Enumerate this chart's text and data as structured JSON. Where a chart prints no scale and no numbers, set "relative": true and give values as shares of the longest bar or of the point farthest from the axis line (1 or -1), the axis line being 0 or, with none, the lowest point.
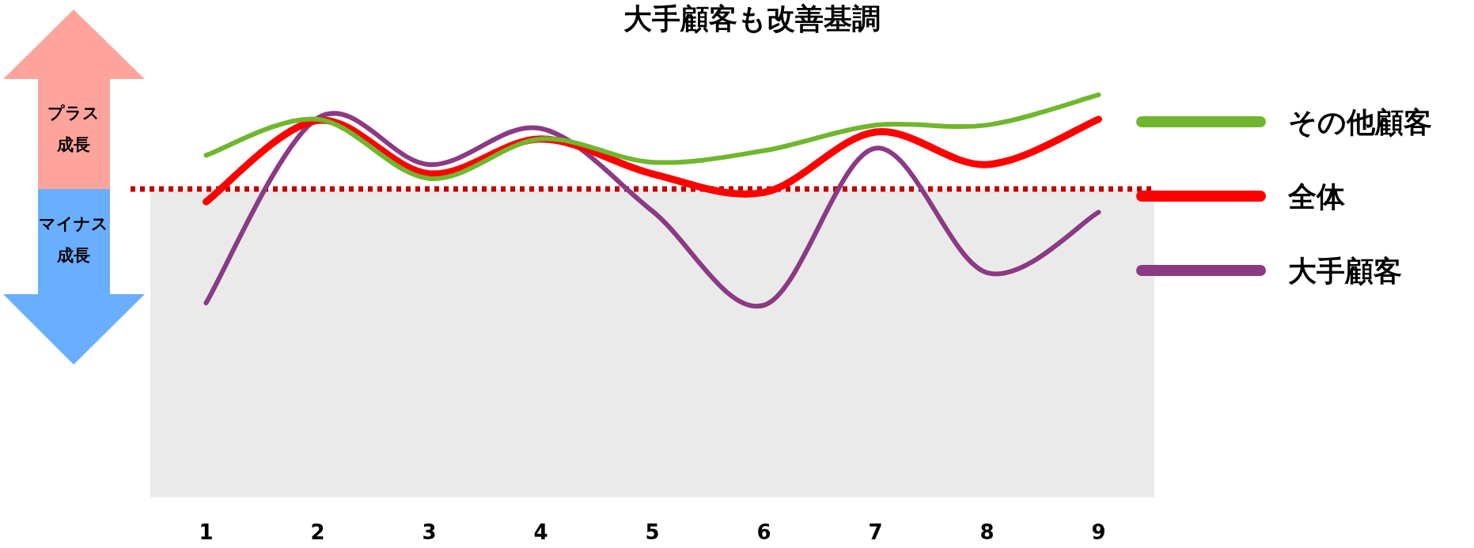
{
  "chart_data": {
    "type": "line",
    "title": "大手顧客も改善基調",
    "relative": true,
    "categories": [
      "1",
      "2",
      "3",
      "4",
      "5",
      "6",
      "7",
      "8",
      "9"
    ],
    "series": [
      {
        "name": "その他顧客",
        "color": "#70b62e",
        "values": [
          0.29,
          0.6,
          0.09,
          0.43,
          0.23,
          0.33,
          0.55,
          0.55,
          0.81
        ]
      },
      {
        "name": "全体",
        "color": "#ff0000",
        "values": [
          -0.11,
          0.59,
          0.13,
          0.43,
          0.13,
          -0.03,
          0.49,
          0.21,
          0.6
        ]
      },
      {
        "name": "大手顧客",
        "color": "#8b3a84",
        "values": [
          -0.98,
          0.61,
          0.21,
          0.52,
          -0.19,
          -1,
          0.35,
          -0.72,
          -0.2
        ]
      }
    ],
    "ref_lines": [
      {
        "axis": "y",
        "value": 0,
        "color": "#c00000",
        "line_style": "dotted"
      }
    ],
    "bands": [
      {
        "axis": "y",
        "from": -2.65,
        "to": 0,
        "color": "#eaeaea"
      }
    ],
    "annotations": [
      "プラス",
      "成長",
      "マイナス",
      "成長"
    ],
    "legend": "right"
  }
}
